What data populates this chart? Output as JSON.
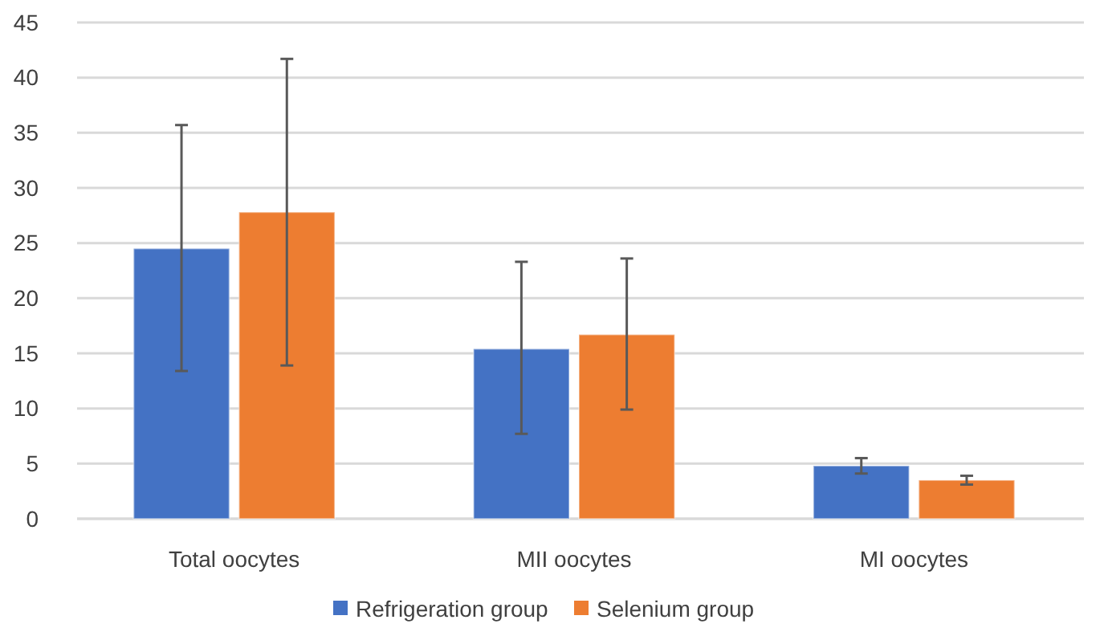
{
  "chart_data": {
    "type": "bar",
    "categories": [
      "Total oocytes",
      "MII oocytes",
      "MI oocytes"
    ],
    "series": [
      {
        "name": "Refrigeration group",
        "color": "#4472c4",
        "values": [
          24.5,
          15.4,
          4.8
        ],
        "errors": [
          [
            13.4,
            35.7
          ],
          [
            7.7,
            23.3
          ],
          [
            4.1,
            5.5
          ]
        ]
      },
      {
        "name": "Selenium group",
        "color": "#ed7d31",
        "values": [
          27.8,
          16.7,
          3.5
        ],
        "errors": [
          [
            13.9,
            41.7
          ],
          [
            9.9,
            23.6
          ],
          [
            3.1,
            3.9
          ]
        ]
      }
    ],
    "ylim": [
      0,
      45
    ],
    "yticks": [
      0,
      5,
      10,
      15,
      20,
      25,
      30,
      35,
      40,
      45
    ],
    "grid": "y",
    "legend": "bottom"
  }
}
